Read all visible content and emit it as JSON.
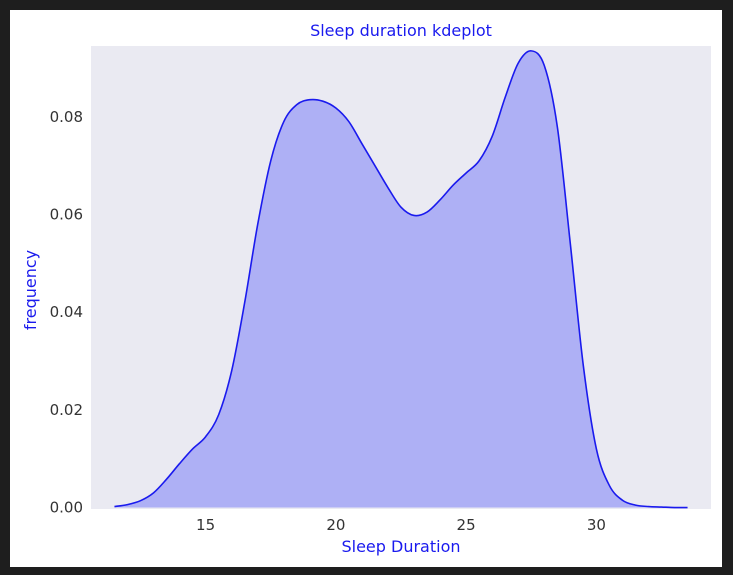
{
  "chart_data": {
    "type": "area",
    "title": "Sleep duration kdeplot",
    "xlabel": "Sleep Duration",
    "ylabel": "frequency",
    "xlim": [
      10.6,
      34.4
    ],
    "ylim": [
      -0.0003,
      0.0945
    ],
    "x_ticks": [
      15,
      20,
      25,
      30
    ],
    "y_ticks": [
      0.0,
      0.02,
      0.04,
      0.06,
      0.08
    ],
    "y_tick_format": 2,
    "grid": false,
    "background": "#eaeaf2",
    "line_color": "#1a1aee",
    "fill_color": "#aeb0f5",
    "label_color": "#1a1aee",
    "series": [
      {
        "x": [
          11.5,
          12.0,
          12.5,
          13.0,
          13.5,
          14.0,
          14.5,
          15.0,
          15.5,
          16.0,
          16.5,
          17.0,
          17.5,
          18.0,
          18.5,
          19.0,
          19.5,
          20.0,
          20.5,
          21.0,
          21.5,
          22.0,
          22.5,
          23.0,
          23.5,
          24.0,
          24.5,
          25.0,
          25.5,
          26.0,
          26.5,
          27.0,
          27.5,
          28.0,
          28.5,
          29.0,
          29.5,
          30.0,
          30.5,
          31.0,
          31.5,
          32.0,
          32.5,
          33.0,
          33.5
        ],
        "y": [
          0.0002,
          0.0006,
          0.0014,
          0.003,
          0.0058,
          0.009,
          0.012,
          0.0145,
          0.019,
          0.028,
          0.042,
          0.058,
          0.071,
          0.079,
          0.0825,
          0.0835,
          0.0832,
          0.0818,
          0.079,
          0.0745,
          0.07,
          0.0655,
          0.0615,
          0.0598,
          0.0605,
          0.063,
          0.066,
          0.0685,
          0.071,
          0.076,
          0.084,
          0.091,
          0.0935,
          0.0905,
          0.078,
          0.054,
          0.029,
          0.012,
          0.0045,
          0.0015,
          0.0005,
          0.0002,
          0.0001,
          0.0,
          0.0
        ]
      }
    ]
  }
}
